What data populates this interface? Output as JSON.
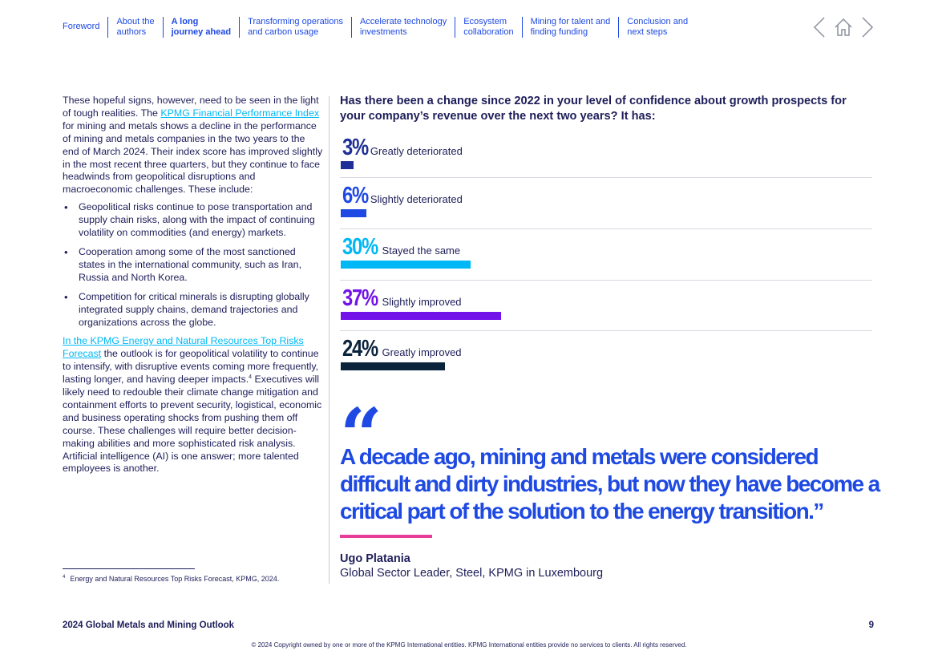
{
  "nav": {
    "items": [
      {
        "line1": "Foreword",
        "line2": ""
      },
      {
        "line1": "About the",
        "line2": "authors"
      },
      {
        "line1": "A long",
        "line2": "journey ahead"
      },
      {
        "line1": "Transforming operations",
        "line2": "and carbon usage"
      },
      {
        "line1": "Accelerate technology",
        "line2": "investments"
      },
      {
        "line1": "Ecosystem",
        "line2": "collaboration"
      },
      {
        "line1": "Mining for talent and",
        "line2": "finding funding"
      },
      {
        "line1": "Conclusion and",
        "line2": "next steps"
      }
    ],
    "active_index": 2,
    "icons": [
      "previous-arrow-icon",
      "home-icon",
      "next-arrow-icon"
    ],
    "color": "#1e49e2"
  },
  "left": {
    "p1_pre": "These hopeful signs, however, need to be seen in the light of tough realities. The ",
    "p1_link": "KPMG Financial Performance Index",
    "p1_post": " for mining and metals shows a decline in the performance of mining and metals companies in the two years to the end of March 2024. Their index score has improved slightly in the most recent three quarters, but they continue to face headwinds from geopolitical disruptions and macroeconomic challenges. These include:",
    "bullets": [
      "Geopolitical risks continue to pose transportation and supply chain risks, along with the impact of continuing volatility on commodities (and energy) markets.",
      "Cooperation among some of the most sanctioned states in the international community, such as Iran, Russia and North Korea.",
      "Competition for critical minerals is disrupting globally integrated supply chains, demand trajectories and organizations across the globe."
    ],
    "p2_link": "In the KPMG Energy and Natural Resources Top Risks Forecast",
    "p2_mid": " the outlook is for geopolitical volatility to continue to intensify, with disruptive events coming more frequently, lasting longer, and having deeper impacts.",
    "p2_sup": "4",
    "p2_post": " Executives will likely need to redouble their climate change mitigation and containment efforts to prevent security, logistical, economic and business operating shocks from pushing them off course. These challenges will require better decision-making abilities and more sophisticated risk analysis. Artificial intelligence (AI) is one answer; more talented employees is another."
  },
  "footnote": {
    "num": "4",
    "text": "Energy and Natural Resources Top Risks Forecast, KPMG, 2024."
  },
  "question": "Has there been a change since 2022 in your level of confidence about growth prospects for your company’s revenue over the next two years? It has:",
  "chart_data": {
    "type": "bar",
    "orientation": "horizontal",
    "title": "Has there been a change since 2022 in your level of confidence about growth prospects for your company’s revenue over the next two years? It has:",
    "categories": [
      "Greatly deteriorated",
      "Slightly deteriorated",
      "Stayed the same",
      "Slightly improved",
      "Greatly improved"
    ],
    "values": [
      3,
      6,
      30,
      37,
      24
    ],
    "value_labels": [
      "3%",
      "6%",
      "30%",
      "37%",
      "24%"
    ],
    "colors": [
      "#1e2f97",
      "#1e49e2",
      "#00b8f5",
      "#7213ea",
      "#0c233c"
    ],
    "unit": "%",
    "grid": false
  },
  "quote": {
    "open_mark": "“",
    "text": "A decade ago, mining and metals were considered difficult and dirty industries, but now they have become a critical part of the solution to the energy transition.",
    "close_mark": "”",
    "author": "Ugo Platania",
    "author_title": "Global Sector Leader, Steel, KPMG in Luxembourg",
    "accent_color": "#e83d9b"
  },
  "footer": {
    "title": "2024 Global Metals and Mining Outlook",
    "page": "9",
    "copyright": "© 2024 Copyright owned by one or more of the KPMG International entities. KPMG International entities provide no services to clients. All rights reserved."
  }
}
